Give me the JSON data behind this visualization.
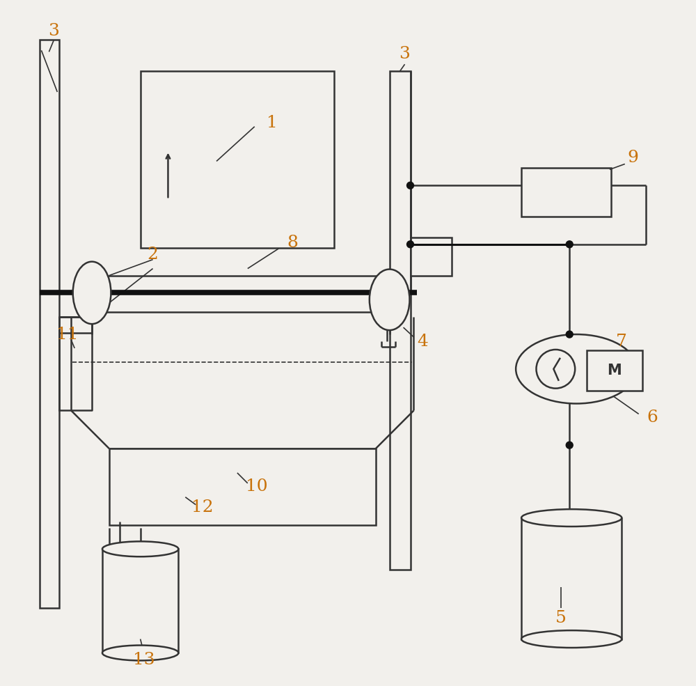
{
  "bg_color": "#f2f0ec",
  "line_color": "#333333",
  "label_color": "#c8720a",
  "fig_width": 10.0,
  "fig_height": 9.85
}
